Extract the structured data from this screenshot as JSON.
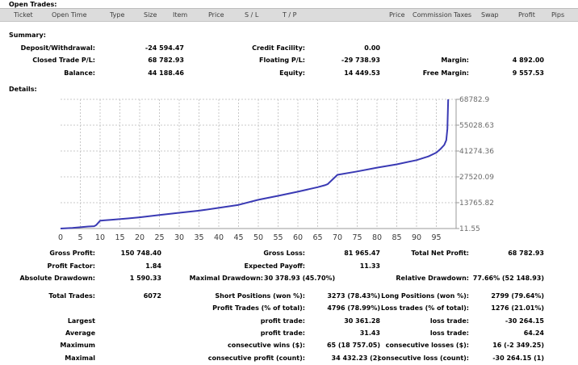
{
  "open_trades": {
    "title": "Open Trades:",
    "columns": [
      "Ticket",
      "Open Time",
      "Type",
      "Size",
      "Item",
      "Price",
      "S / L",
      "T / P",
      "Price",
      "Commission",
      "Taxes",
      "Swap",
      "Profit",
      "Pips"
    ]
  },
  "summary": {
    "title": "Summary:",
    "deposit_label": "Deposit/Withdrawal:",
    "deposit_value": "-24 594.47",
    "closed_label": "Closed Trade P/L:",
    "closed_value": "68 782.93",
    "balance_label": "Balance:",
    "balance_value": "44 188.46",
    "credit_label": "Credit Facility:",
    "credit_value": "0.00",
    "floating_label": "Floating P/L:",
    "floating_value": "-29 738.93",
    "equity_label": "Equity:",
    "equity_value": "14 449.53",
    "margin_label": "Margin:",
    "margin_value": "4 892.00",
    "free_margin_label": "Free Margin:",
    "free_margin_value": "9 557.53"
  },
  "details": {
    "title": "Details:",
    "gross_profit_label": "Gross Profit:",
    "gross_profit_value": "150 748.40",
    "gross_loss_label": "Gross Loss:",
    "gross_loss_value": "81 965.47",
    "net_profit_label": "Total Net Profit:",
    "net_profit_value": "68 782.93",
    "profit_factor_label": "Profit Factor:",
    "profit_factor_value": "1.84",
    "expected_payoff_label": "Expected Payoff:",
    "expected_payoff_value": "11.33",
    "abs_dd_label": "Absolute Drawdown:",
    "abs_dd_value": "1 590.33",
    "max_dd_label": "Maximal Drawdown:",
    "max_dd_value": "30 378.93 (45.70%)",
    "rel_dd_label": "Relative Drawdown:",
    "rel_dd_value": "77.66% (52 148.93)",
    "total_trades_label": "Total Trades:",
    "total_trades_value": "6072",
    "short_label": "Short Positions (won %):",
    "short_value": "3273 (78.43%)",
    "long_label": "Long Positions (won %):",
    "long_value": "2799 (79.64%)",
    "profit_trades_label": "Profit Trades (% of total):",
    "profit_trades_value": "4796 (78.99%)",
    "loss_trades_label": "Loss trades (% of total):",
    "loss_trades_value": "1276 (21.01%)",
    "largest_label": "Largest",
    "largest_profit_label": "profit trade:",
    "largest_profit_value": "30 361.28",
    "largest_loss_label": "loss trade:",
    "largest_loss_value": "-30 264.15",
    "average_label": "Average",
    "average_profit_label": "profit trade:",
    "average_profit_value": "31.43",
    "average_loss_label": "loss trade:",
    "average_loss_value": "64.24",
    "maximum_label": "Maximum",
    "max_wins_label": "consecutive wins ($):",
    "max_wins_value": "65 (18 757.05)",
    "max_losses_label": "consecutive losses ($):",
    "max_losses_value": "16 (-2 349.25)",
    "maximal_label": "Maximal",
    "maximal_profit_label": "consecutive profit (count):",
    "maximal_profit_value": "34 432.23 (2)",
    "maximal_loss_label": "consecutive loss (count):",
    "maximal_loss_value": "-30 264.15 (1)"
  },
  "chart_data": {
    "type": "line",
    "x_ticks": [
      "0",
      "5",
      "10",
      "15",
      "20",
      "25",
      "30",
      "35",
      "40",
      "45",
      "50",
      "55",
      "60",
      "65",
      "70",
      "75",
      "80",
      "85",
      "90",
      "95"
    ],
    "y_ticks": [
      "68782.9",
      "55028.63",
      "41274.36",
      "27520.09",
      "13765.82",
      "11.55"
    ],
    "xlim": [
      0,
      100
    ],
    "ylim": [
      11.55,
      68782.9
    ],
    "grid": true,
    "line_color": "#3a3ab4",
    "series": [
      {
        "x": [
          0,
          3,
          7,
          8.5,
          9,
          10,
          13,
          17,
          20,
          25,
          30,
          35,
          40,
          45,
          50,
          55,
          60,
          65,
          67,
          67.5,
          70,
          75,
          80,
          85,
          90,
          93,
          95,
          96,
          97,
          97.5,
          97.8,
          98
        ],
        "y": [
          11.55,
          360,
          1100,
          1250,
          1800,
          4200,
          4700,
          5400,
          6000,
          7200,
          8400,
          9500,
          11000,
          12600,
          15300,
          17400,
          19600,
          22000,
          23200,
          23600,
          28600,
          30400,
          32400,
          34200,
          36400,
          38400,
          40400,
          42200,
          44500,
          47000,
          53000,
          68782.9
        ]
      }
    ]
  }
}
